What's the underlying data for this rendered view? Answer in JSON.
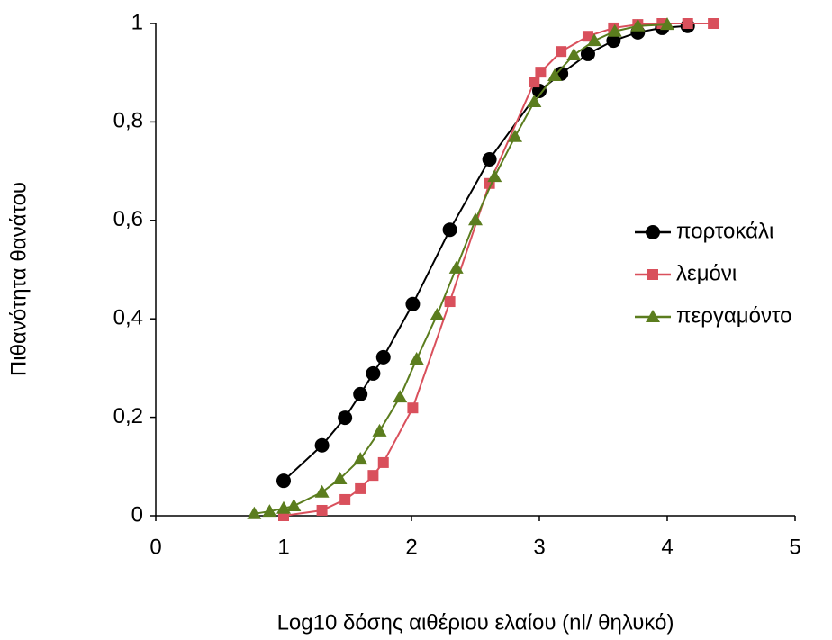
{
  "chart_data": {
    "type": "line",
    "x_label": "Log10 δόσης αιθέριου ελαίου (nl/ θηλυκό)",
    "y_label": "Πιθανότητα θανάτου",
    "xlim": [
      0,
      5
    ],
    "xticks": [
      0,
      1,
      2,
      3,
      4,
      5
    ],
    "ylim": [
      0,
      1
    ],
    "yticks": [
      0,
      {
        "value": 0.2,
        "label": "0,2"
      },
      {
        "value": 0.4,
        "label": "0,4"
      },
      {
        "value": 0.6,
        "label": "0,6"
      },
      {
        "value": 0.8,
        "label": "0,8"
      },
      1
    ],
    "grid": false,
    "legend": "right",
    "series": [
      {
        "name": "πορτοκάλι",
        "color": "#000000",
        "marker": "circle",
        "x": [
          1.0,
          1.3,
          1.48,
          1.6,
          1.7,
          1.78,
          2.01,
          2.3,
          2.61,
          3.0,
          3.17,
          3.38,
          3.58,
          3.77,
          3.96,
          4.16
        ],
        "values": [
          0.071,
          0.143,
          0.199,
          0.247,
          0.289,
          0.322,
          0.43,
          0.581,
          0.724,
          0.863,
          0.898,
          0.938,
          0.965,
          0.982,
          0.991,
          0.995
        ]
      },
      {
        "name": "λεμόνι",
        "color": "#d9505c",
        "marker": "square",
        "x": [
          1.0,
          1.3,
          1.48,
          1.6,
          1.7,
          1.78,
          2.01,
          2.3,
          2.61,
          2.96,
          3.01,
          3.17,
          3.38,
          3.58,
          3.77,
          3.96,
          4.16,
          4.36
        ],
        "values": [
          0,
          0.011,
          0.033,
          0.055,
          0.082,
          0.108,
          0.219,
          0.435,
          0.675,
          0.881,
          0.901,
          0.943,
          0.974,
          0.991,
          0.998,
          1,
          1,
          1
        ]
      },
      {
        "name": "περγαμόντο",
        "color": "#5b7d1e",
        "marker": "triangle",
        "x": [
          0.77,
          0.89,
          1.0,
          1.08,
          1.3,
          1.44,
          1.6,
          1.75,
          1.91,
          2.04,
          2.2,
          2.35,
          2.5,
          2.65,
          2.81,
          2.96,
          3.12,
          3.27,
          3.43,
          3.59,
          3.77,
          4.0
        ],
        "values": [
          0.004,
          0.009,
          0.015,
          0.02,
          0.048,
          0.075,
          0.115,
          0.172,
          0.241,
          0.318,
          0.408,
          0.503,
          0.601,
          0.689,
          0.77,
          0.841,
          0.894,
          0.936,
          0.965,
          0.984,
          0.995,
          0.998
        ]
      }
    ]
  }
}
